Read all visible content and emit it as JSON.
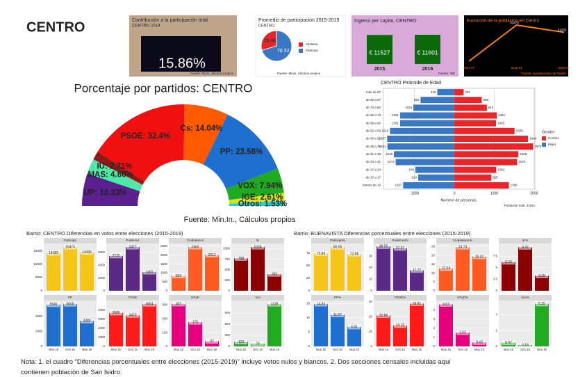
{
  "title": "CENTRO",
  "note": "Nota: 1. el cuadro “Diferencias porcentuales entre elecciones (2015-2019)” incluye votos nulos y blancos. 2. Dos secciones censales incluidas aquí contienen población de San Isidro.",
  "chart_data": [
    {
      "type": "kpi",
      "title": "Contribución a la participación total",
      "subtitle": "CENTRO 2019",
      "value": 15.86,
      "value_label": "15.86%",
      "source": "Fuente: Minin, cálculos propios"
    },
    {
      "type": "pie",
      "title": "Promedio de participación 2015-2019",
      "subtitle": "CENTRO",
      "categories": [
        "Abstiene",
        "Participa"
      ],
      "values": [
        29.68,
        70.32
      ],
      "colors": [
        "#e8262a",
        "#3a78c3"
      ],
      "source": "Fuente: Minin, cálculos propios"
    },
    {
      "type": "bar",
      "title": "Ingreso per capita, CENTRO",
      "categories": [
        "2015",
        "2016"
      ],
      "values": [
        11527,
        11601
      ],
      "value_labels": [
        "€ 11527",
        "€ 11601"
      ],
      "color": "#0b6b0b",
      "source": "Fuente: INE"
    },
    {
      "type": "line",
      "title": "Evolución de la población en Centro",
      "x": [
        "2017-07",
        "2018-01",
        "2019-07"
      ],
      "values": [
        30300,
        31470,
        31235
      ],
      "value_labels": [
        null,
        "31470",
        "31235"
      ],
      "color": "#ff7f0e",
      "source": "Fuente: Ayuntamiento de Getafe"
    },
    {
      "type": "semi_donut",
      "title": "Porcentaje por partidos: CENTRO",
      "categories": [
        "UP",
        "MAS",
        "IU",
        "PSOE",
        "Cs",
        "PP",
        "VOX",
        "IGE",
        "Otros"
      ],
      "values": [
        10.33,
        4.86,
        2.71,
        32.4,
        14.04,
        23.58,
        7.94,
        2.61,
        1.53
      ],
      "value_labels": [
        "UP: 10.33%",
        "MAS: 4.86%",
        "IU: 2.71%",
        "PSOE: 32.4%",
        "Cs: 14.04%",
        "PP: 23.58%",
        "VOX: 7.94%",
        "IGE: 2.61%",
        "Otros: 1.53%"
      ],
      "colors": [
        "#5b1f8f",
        "#4ee8a8",
        "#8b1a1a",
        "#f01010",
        "#ff5a00",
        "#1e6fcf",
        "#1faa1f",
        "#d6e21a",
        "#19d4e0"
      ],
      "source": "Fuente: Min.In., Cálculos propios"
    },
    {
      "type": "pyramid",
      "title": "CENTRO Pirámide de Edad",
      "categories": [
        "más de 87",
        "de 80 a 87",
        "de 73 a 80",
        "de 66 a 73",
        "de 59 a 66",
        "de 52 a 59",
        "de 45 a 52",
        "de 38 a 45",
        "de 31 a 38",
        "de 24 a 31",
        "de 17 a 24",
        "de 10 a 17",
        "menos de 10"
      ],
      "series": [
        {
          "name": "Hombre",
          "color": "#e8262a",
          "values": [
            231,
            686,
            815,
            1062,
            1045,
            1509,
            1848,
            1975,
            1605,
            1575,
            1051,
            925,
            1368
          ]
        },
        {
          "name": "Mujer",
          "color": "#3a78c3",
          "values": [
            429,
            850,
            1029,
            1361,
            1361,
            1616,
            1687,
            1681,
            1518,
            1473,
            978,
            910,
            1287
          ]
        }
      ],
      "xlim": [
        -1780,
        2020
      ],
      "xticks": [
        -1000,
        0,
        1000,
        2000
      ],
      "xlabel": "Número de personas",
      "legend_title": "Gender",
      "note": "Población total: 31164"
    },
    {
      "type": "facet_bar",
      "title": "Barrio:  CENTRO  Diferencias en votos entre elecciones (2015-2019)",
      "categories": [
        "Mun.15",
        "Gen.15",
        "Mun.19"
      ],
      "panels": [
        {
          "title": "Participa",
          "color": "#f5c518",
          "values": [
            14183,
            16474,
            14496
          ],
          "ylim": [
            0,
            17300
          ],
          "yticks": [
            0,
            5000,
            10000,
            15000
          ]
        },
        {
          "title": "Podemos",
          "color": "#5b2a86",
          "values": [
            2735,
            3427,
            1463
          ],
          "ylim": [
            0,
            3600
          ],
          "yticks": [
            0,
            1000,
            2000,
            3000
          ]
        },
        {
          "title": "Ciudadanos",
          "color": "#ff5a1f",
          "values": [
            834,
            2460,
            2012
          ],
          "ylim": [
            0,
            2580
          ],
          "yticks": [
            0,
            500,
            1000,
            1500,
            2000,
            2500
          ]
        },
        {
          "title": "IU",
          "color": "#8b0000",
          "values": [
            768,
            1036,
            392
          ],
          "ylim": [
            0,
            1090
          ],
          "yticks": [
            0,
            250,
            500,
            750,
            1000
          ]
        },
        {
          "title": "PP",
          "color": "#1e6fcf",
          "values": [
            5540,
            5605,
            3380
          ],
          "ylim": [
            0,
            5900
          ],
          "yticks": [
            0,
            2000,
            4000
          ]
        },
        {
          "title": "PSOE",
          "color": "#ff1a1a",
          "values": [
            3686,
            3423,
            4654
          ],
          "ylim": [
            0,
            4900
          ],
          "yticks": [
            0,
            1000,
            2000,
            3000,
            4000
          ]
        },
        {
          "title": "UPyD",
          "color": "#e6007e",
          "values": [
            307,
            175,
            37
          ],
          "ylim": [
            0,
            322
          ],
          "yticks": [
            0,
            100,
            200,
            300
          ]
        },
        {
          "title": "Vox",
          "color": "#22aa22",
          "values": [
            123,
            74,
            1138
          ],
          "ylim": [
            0,
            1200
          ],
          "yticks": [
            0,
            300,
            600,
            900
          ]
        }
      ]
    },
    {
      "type": "facet_bar",
      "title": "Barrio:  BUENAVISTA  Diferencias porcentuales entre elecciones (2015-2019)",
      "categories": [
        "Mun.15",
        "Gen.15",
        "Mun.19"
      ],
      "panels": [
        {
          "title": "Participa%",
          "color": "#f5c518",
          "values": [
            73.86,
            86.55,
            72.68
          ],
          "ylim": [
            0,
            91
          ],
          "yticks": [
            0,
            25,
            50,
            75
          ]
        },
        {
          "title": "Podemos%",
          "color": "#5b2a86",
          "values": [
            38.55,
            37.07,
            17.77
          ],
          "ylim": [
            0,
            40
          ],
          "yticks": [
            0,
            10,
            20,
            30
          ]
        },
        {
          "title": "Ciudadanos%",
          "color": "#ff5a1f",
          "values": [
            12.64,
            24.73,
            19.32
          ],
          "ylim": [
            0,
            26
          ],
          "yticks": [
            0,
            5,
            10,
            15,
            20,
            25
          ]
        },
        {
          "title": "IU%",
          "color": "#8b0000",
          "values": [
            6.24,
            9.47,
            3.26
          ],
          "ylim": [
            0,
            10
          ],
          "yticks": [
            0,
            2.5,
            5,
            7.5
          ]
        },
        {
          "title": "PP%",
          "color": "#1e6fcf",
          "values": [
            14.83,
            11.07,
            6.81
          ],
          "ylim": [
            0,
            15.6
          ],
          "yticks": [
            0,
            5,
            10,
            15
          ]
        },
        {
          "title": "PSOE%",
          "color": "#ff1a1a",
          "values": [
            20.86,
            14.15,
            28.81
          ],
          "ylim": [
            0,
            30
          ],
          "yticks": [
            0,
            10,
            20,
            30
          ]
        },
        {
          "title": "UPyD%",
          "color": "#e6007e",
          "values": [
            4.63,
            1.52,
            0.43
          ],
          "ylim": [
            0,
            4.9
          ],
          "yticks": [
            0,
            1,
            2,
            3,
            4
          ]
        },
        {
          "title": "Vox%",
          "color": "#22aa22",
          "values": [
            0.47,
            0.18,
            5.35
          ],
          "ylim": [
            0,
            5.6
          ],
          "yticks": [
            0,
            2,
            4
          ]
        }
      ]
    }
  ]
}
